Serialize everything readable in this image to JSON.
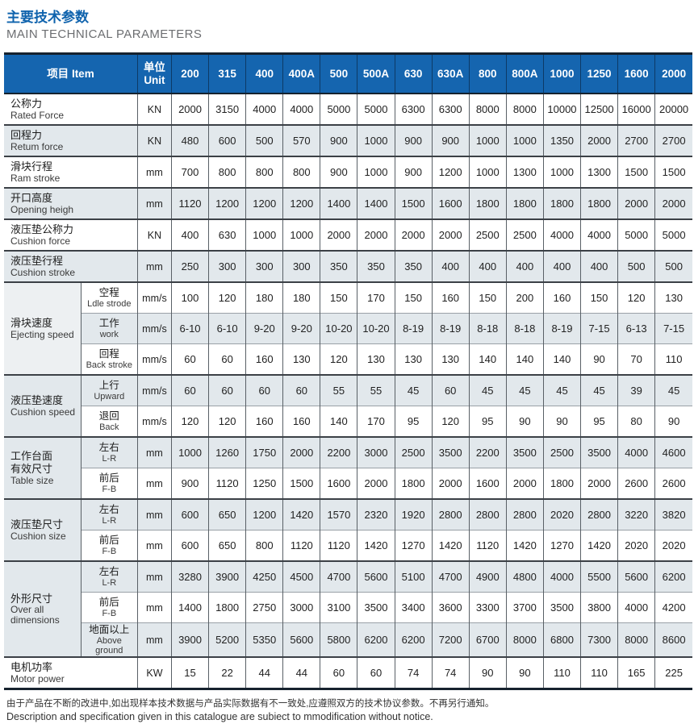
{
  "page": {
    "title_zh": "主要技术参数",
    "title_en": "MAIN TECHNICAL PARAMETERS",
    "footer_zh": "由于产品在不断的改进中,如出现样本技术数据与产品实际数据有不一致处,应遵照双方的技术协议参数。不再另行通知。",
    "footer_en": "Description and specification given in this catalogue are subiect to mmodification without notice."
  },
  "table": {
    "item_header": "项目 Item",
    "unit_header": "单位\nUnit",
    "size_columns": [
      "200",
      "315",
      "400",
      "400A",
      "500",
      "500A",
      "630",
      "630A",
      "800",
      "800A",
      "1000",
      "1250",
      "1600",
      "2000"
    ],
    "groups": [
      {
        "zh": "公称力",
        "en": "Rated Force",
        "rows": [
          {
            "unit": "KN",
            "values": [
              "2000",
              "3150",
              "4000",
              "4000",
              "5000",
              "5000",
              "6300",
              "6300",
              "8000",
              "8000",
              "10000",
              "12500",
              "16000",
              "20000"
            ]
          }
        ]
      },
      {
        "zh": "回程力",
        "en": "Retum force",
        "rows": [
          {
            "unit": "KN",
            "values": [
              "480",
              "600",
              "500",
              "570",
              "900",
              "1000",
              "900",
              "900",
              "1000",
              "1000",
              "1350",
              "2000",
              "2700",
              "2700"
            ]
          }
        ]
      },
      {
        "zh": "滑块行程",
        "en": "Ram stroke",
        "rows": [
          {
            "unit": "mm",
            "values": [
              "700",
              "800",
              "800",
              "800",
              "900",
              "1000",
              "900",
              "1200",
              "1000",
              "1300",
              "1000",
              "1300",
              "1500",
              "1500"
            ]
          }
        ]
      },
      {
        "zh": "开口高度",
        "en": "Opening heigh",
        "rows": [
          {
            "unit": "mm",
            "values": [
              "1120",
              "1200",
              "1200",
              "1200",
              "1400",
              "1400",
              "1500",
              "1600",
              "1800",
              "1800",
              "1800",
              "1800",
              "2000",
              "2000"
            ]
          }
        ]
      },
      {
        "zh": "液压垫公称力",
        "en": "Cushion force",
        "rows": [
          {
            "unit": "KN",
            "values": [
              "400",
              "630",
              "1000",
              "1000",
              "2000",
              "2000",
              "2000",
              "2000",
              "2500",
              "2500",
              "4000",
              "4000",
              "5000",
              "5000"
            ]
          }
        ]
      },
      {
        "zh": "液压垫行程",
        "en": "Cushion stroke",
        "rows": [
          {
            "unit": "mm",
            "values": [
              "250",
              "300",
              "300",
              "300",
              "350",
              "350",
              "350",
              "400",
              "400",
              "400",
              "400",
              "400",
              "500",
              "500"
            ]
          }
        ]
      },
      {
        "zh": "滑块速度",
        "en": "Ejecting speed",
        "rows": [
          {
            "zh": "空程",
            "en": "Ldle strode",
            "unit": "mm/s",
            "values": [
              "100",
              "120",
              "180",
              "180",
              "150",
              "170",
              "150",
              "160",
              "150",
              "200",
              "160",
              "150",
              "120",
              "130"
            ]
          },
          {
            "zh": "工作",
            "en": "work",
            "unit": "mm/s",
            "values": [
              "6-10",
              "6-10",
              "9-20",
              "9-20",
              "10-20",
              "10-20",
              "8-19",
              "8-19",
              "8-18",
              "8-18",
              "8-19",
              "7-15",
              "6-13",
              "7-15"
            ]
          },
          {
            "zh": "回程",
            "en": "Back stroke",
            "unit": "mm/s",
            "values": [
              "60",
              "60",
              "160",
              "130",
              "120",
              "130",
              "130",
              "130",
              "140",
              "140",
              "140",
              "90",
              "70",
              "110"
            ]
          }
        ]
      },
      {
        "zh": "液压垫速度",
        "en": "Cushion speed",
        "rows": [
          {
            "zh": "上行",
            "en": "Upward",
            "unit": "mm/s",
            "values": [
              "60",
              "60",
              "60",
              "60",
              "55",
              "55",
              "45",
              "60",
              "45",
              "45",
              "45",
              "45",
              "39",
              "45"
            ]
          },
          {
            "zh": "退回",
            "en": "Back",
            "unit": "mm/s",
            "values": [
              "120",
              "120",
              "160",
              "160",
              "140",
              "170",
              "95",
              "120",
              "95",
              "90",
              "90",
              "95",
              "80",
              "90"
            ]
          }
        ]
      },
      {
        "zh": "工作台面\n有效尺寸",
        "en": "Table size",
        "rows": [
          {
            "zh": "左右",
            "en": "L-R",
            "unit": "mm",
            "values": [
              "1000",
              "1260",
              "1750",
              "2000",
              "2200",
              "3000",
              "2500",
              "3500",
              "2200",
              "3500",
              "2500",
              "3500",
              "4000",
              "4600"
            ]
          },
          {
            "zh": "前后",
            "en": "F-B",
            "unit": "mm",
            "values": [
              "900",
              "1120",
              "1250",
              "1500",
              "1600",
              "2000",
              "1800",
              "2000",
              "1600",
              "2000",
              "1800",
              "2000",
              "2600",
              "2600"
            ]
          }
        ]
      },
      {
        "zh": "液压垫尺寸",
        "en": "Cushion size",
        "rows": [
          {
            "zh": "左右",
            "en": "L-R",
            "unit": "mm",
            "values": [
              "600",
              "650",
              "1200",
              "1420",
              "1570",
              "2320",
              "1920",
              "2800",
              "2800",
              "2800",
              "2020",
              "2800",
              "3220",
              "3820"
            ]
          },
          {
            "zh": "前后",
            "en": "F-B",
            "unit": "mm",
            "values": [
              "600",
              "650",
              "800",
              "1120",
              "1120",
              "1420",
              "1270",
              "1420",
              "1120",
              "1420",
              "1270",
              "1420",
              "2020",
              "2020"
            ]
          }
        ]
      },
      {
        "zh": "外形尺寸",
        "en": "Over all\ndimensions",
        "rows": [
          {
            "zh": "左右",
            "en": "L-R",
            "unit": "mm",
            "values": [
              "3280",
              "3900",
              "4250",
              "4500",
              "4700",
              "5600",
              "5100",
              "4700",
              "4900",
              "4800",
              "4000",
              "5500",
              "5600",
              "6200"
            ]
          },
          {
            "zh": "前后",
            "en": "F-B",
            "unit": "mm",
            "values": [
              "1400",
              "1800",
              "2750",
              "3000",
              "3100",
              "3500",
              "3400",
              "3600",
              "3300",
              "3700",
              "3500",
              "3800",
              "4000",
              "4200"
            ]
          },
          {
            "zh": "地面以上",
            "en": "Above ground",
            "unit": "mm",
            "values": [
              "3900",
              "5200",
              "5350",
              "5600",
              "5800",
              "6200",
              "6200",
              "7200",
              "6700",
              "8000",
              "6800",
              "7300",
              "8000",
              "8600"
            ]
          }
        ]
      },
      {
        "zh": "电机功率",
        "en": "Motor power",
        "rows": [
          {
            "unit": "KW",
            "values": [
              "15",
              "22",
              "44",
              "44",
              "60",
              "60",
              "74",
              "74",
              "90",
              "90",
              "110",
              "110",
              "165",
              "225"
            ]
          }
        ]
      }
    ]
  }
}
